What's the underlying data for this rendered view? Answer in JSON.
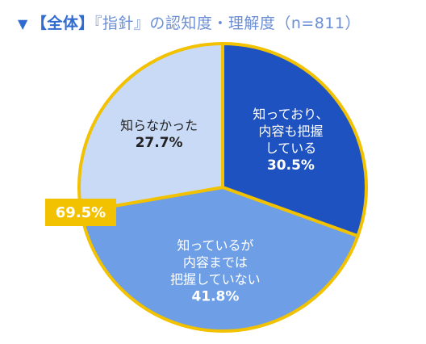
{
  "header": {
    "marker": "▼",
    "bracket": "【全体】",
    "subject": "『指針』の認知度・理解度（n=811）"
  },
  "colors": {
    "outline": "#f2c200",
    "callout": "#f2c200"
  },
  "chart_data": {
    "type": "pie",
    "title": "【全体】『指針』の認知度・理解度（n=811）",
    "slices": [
      {
        "label_lines": [
          "知っており、",
          "内容も把握",
          "している"
        ],
        "value": 30.5,
        "value_text": "30.5%",
        "color": "#1e52c0",
        "text": "light"
      },
      {
        "label_lines": [
          "知っているが",
          "内容までは",
          "把握していない"
        ],
        "value": 41.8,
        "value_text": "41.8%",
        "color": "#6d9ee6",
        "text": "light"
      },
      {
        "label_lines": [
          "知らなかった"
        ],
        "value": 27.7,
        "value_text": "27.7%",
        "color": "#c9daf6",
        "text": "dark"
      }
    ],
    "callout": {
      "text": "69.5%",
      "value": 69.5
    },
    "legend": "none"
  }
}
